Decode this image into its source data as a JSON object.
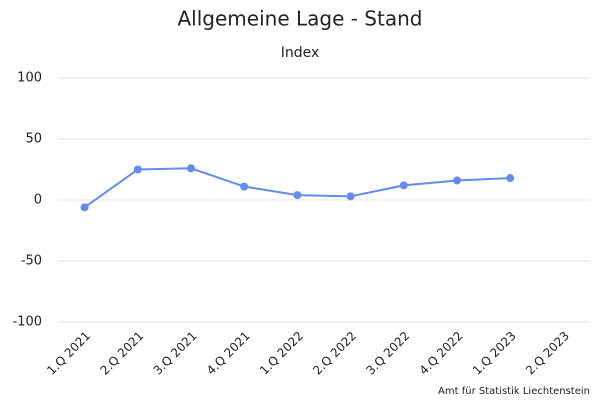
{
  "chart_data": {
    "type": "line",
    "title": "Allgemeine Lage - Stand",
    "subtitle": "Index",
    "credit": "Amt für Statistik Liechtenstein",
    "categories": [
      "1.Q 2021",
      "2.Q 2021",
      "3.Q 2021",
      "4.Q 2021",
      "1.Q 2022",
      "2.Q 2022",
      "3.Q 2022",
      "4.Q 2022",
      "1.Q 2023",
      "2.Q 2023"
    ],
    "values": [
      -6,
      25,
      26,
      11,
      4,
      3,
      12,
      16,
      18,
      null
    ],
    "color": "#628cf0",
    "ylim": [
      -100,
      100
    ],
    "yticks": [
      -100,
      -50,
      0,
      50,
      100
    ],
    "grid": true
  }
}
